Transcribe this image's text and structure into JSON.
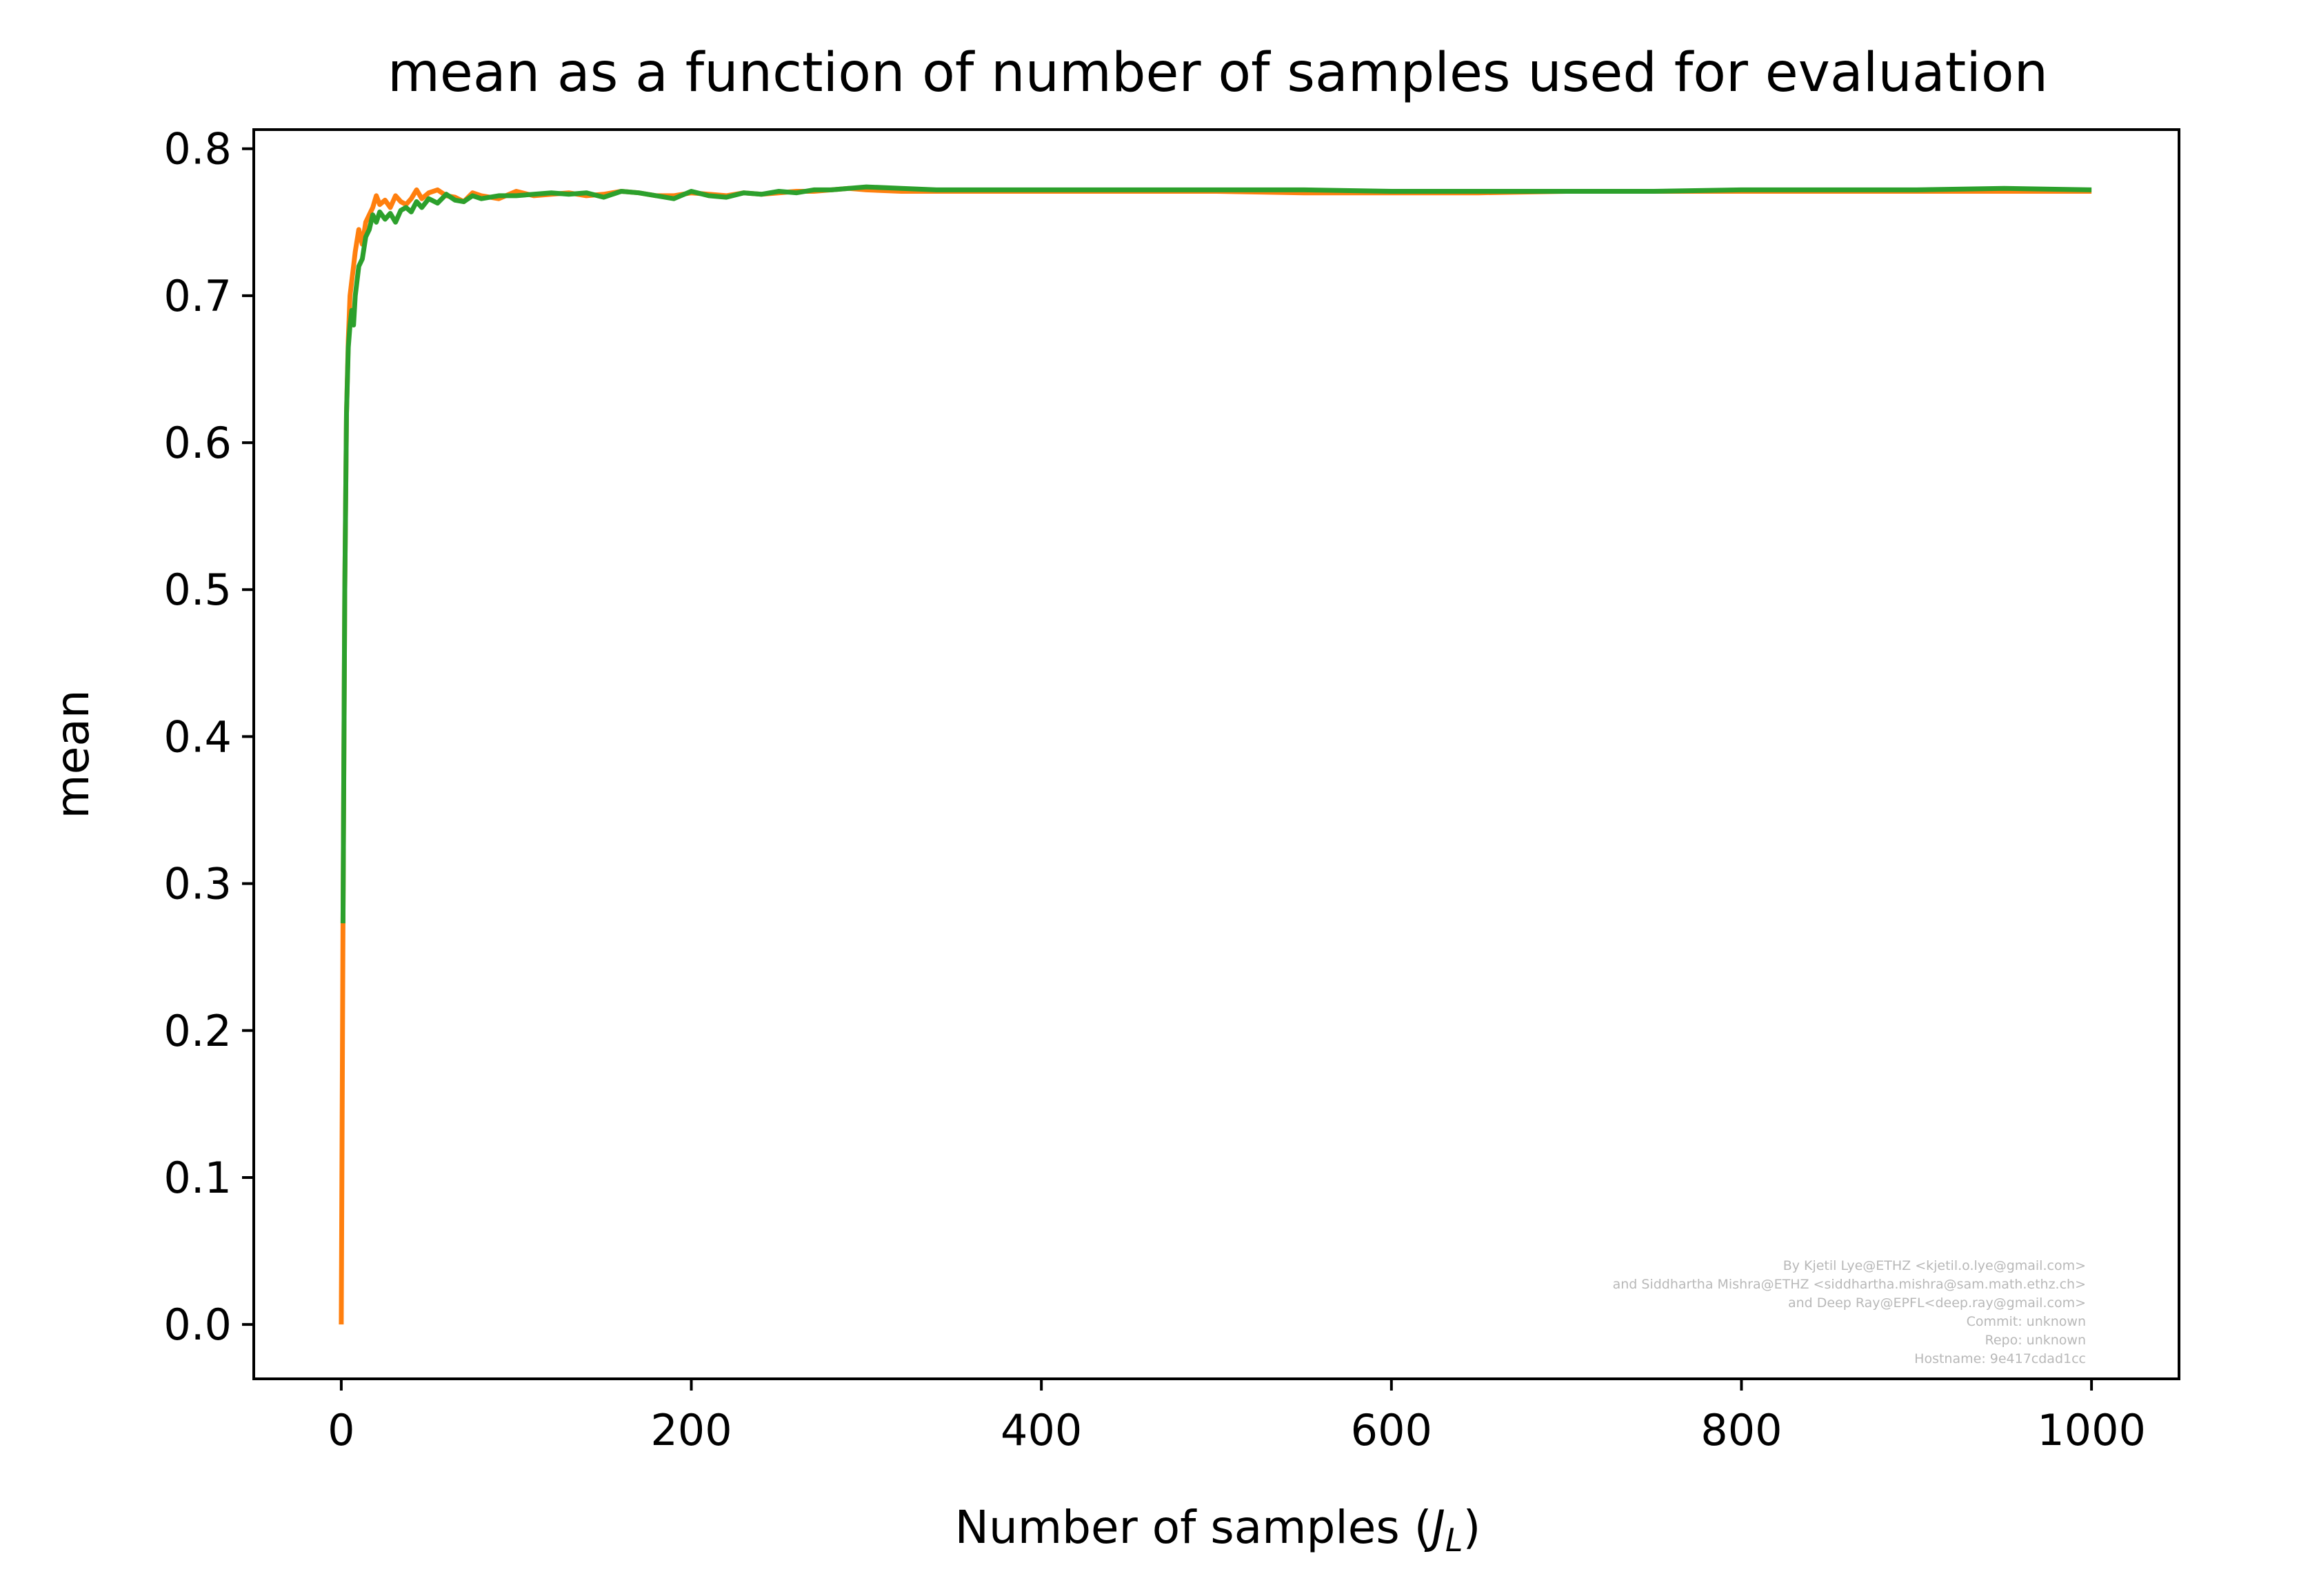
{
  "chart_data": {
    "type": "line",
    "title": "mean as a function of number of samples used for evaluation",
    "xlabel": "Number of samples (",
    "xlabel_math_main": "J",
    "xlabel_math_sub": "L",
    "xlabel_close": ")",
    "ylabel": "mean",
    "xlim": [
      -50,
      1050
    ],
    "ylim": [
      -0.037,
      0.813
    ],
    "xticks": [
      0,
      200,
      400,
      600,
      800,
      1000
    ],
    "xtick_labels": [
      "0",
      "200",
      "400",
      "600",
      "800",
      "1000"
    ],
    "yticks": [
      0.0,
      0.1,
      0.2,
      0.3,
      0.4,
      0.5,
      0.6,
      0.7,
      0.8
    ],
    "ytick_labels": [
      "0.0",
      "0.1",
      "0.2",
      "0.3",
      "0.4",
      "0.5",
      "0.6",
      "0.7",
      "0.8"
    ],
    "grid": false,
    "legend": "none",
    "series": [
      {
        "color": "#ff7f0e",
        "x": [
          0,
          1,
          2,
          3,
          4,
          5,
          6,
          7,
          8,
          10,
          12,
          14,
          16,
          18,
          20,
          22,
          25,
          28,
          31,
          34,
          37,
          40,
          43,
          46,
          50,
          55,
          60,
          65,
          70,
          75,
          80,
          90,
          100,
          110,
          120,
          130,
          140,
          150,
          160,
          170,
          180,
          190,
          200,
          210,
          220,
          230,
          240,
          250,
          260,
          270,
          280,
          290,
          300,
          320,
          340,
          360,
          380,
          400,
          425,
          450,
          475,
          500,
          550,
          600,
          650,
          700,
          750,
          800,
          850,
          900,
          950,
          1000
        ],
        "y": [
          0.0,
          0.273,
          0.5,
          0.62,
          0.67,
          0.7,
          0.71,
          0.72,
          0.73,
          0.745,
          0.735,
          0.75,
          0.755,
          0.76,
          0.768,
          0.762,
          0.765,
          0.76,
          0.768,
          0.764,
          0.762,
          0.766,
          0.772,
          0.766,
          0.77,
          0.772,
          0.768,
          0.767,
          0.764,
          0.77,
          0.768,
          0.766,
          0.771,
          0.768,
          0.769,
          0.77,
          0.768,
          0.769,
          0.771,
          0.77,
          0.768,
          0.768,
          0.77,
          0.769,
          0.768,
          0.77,
          0.769,
          0.77,
          0.771,
          0.771,
          0.772,
          0.773,
          0.772,
          0.771,
          0.771,
          0.771,
          0.771,
          0.771,
          0.771,
          0.771,
          0.771,
          0.771,
          0.77,
          0.77,
          0.77,
          0.771,
          0.771,
          0.771,
          0.771,
          0.771,
          0.771,
          0.771
        ]
      },
      {
        "color": "#2ca02c",
        "x": [
          1,
          2,
          3,
          4,
          5,
          6,
          7,
          8,
          10,
          12,
          14,
          16,
          18,
          20,
          22,
          25,
          28,
          31,
          34,
          37,
          40,
          43,
          46,
          50,
          55,
          60,
          65,
          70,
          75,
          80,
          90,
          100,
          110,
          120,
          130,
          140,
          150,
          160,
          170,
          180,
          190,
          200,
          210,
          220,
          230,
          240,
          250,
          260,
          270,
          280,
          290,
          300,
          320,
          340,
          360,
          380,
          400,
          425,
          450,
          475,
          500,
          550,
          600,
          650,
          700,
          750,
          800,
          850,
          900,
          950,
          1000
        ],
        "y": [
          0.273,
          0.5,
          0.62,
          0.665,
          0.68,
          0.69,
          0.68,
          0.7,
          0.72,
          0.725,
          0.74,
          0.745,
          0.755,
          0.75,
          0.757,
          0.752,
          0.756,
          0.75,
          0.758,
          0.76,
          0.757,
          0.764,
          0.76,
          0.766,
          0.763,
          0.769,
          0.765,
          0.764,
          0.768,
          0.766,
          0.768,
          0.768,
          0.769,
          0.77,
          0.769,
          0.77,
          0.767,
          0.771,
          0.77,
          0.768,
          0.766,
          0.771,
          0.768,
          0.767,
          0.77,
          0.769,
          0.771,
          0.77,
          0.772,
          0.772,
          0.773,
          0.774,
          0.773,
          0.772,
          0.772,
          0.772,
          0.772,
          0.772,
          0.772,
          0.772,
          0.772,
          0.772,
          0.771,
          0.771,
          0.771,
          0.771,
          0.772,
          0.772,
          0.772,
          0.773,
          0.772
        ]
      }
    ]
  },
  "signature": [
    "By Kjetil Lye@ETHZ <kjetil.o.lye@gmail.com>",
    "and Siddhartha Mishra@ETHZ <siddhartha.mishra@sam.math.ethz.ch>",
    "and Deep Ray@EPFL<deep.ray@gmail.com>",
    "Commit: unknown",
    "Repo: unknown",
    "Hostname: 9e417cdad1cc"
  ]
}
